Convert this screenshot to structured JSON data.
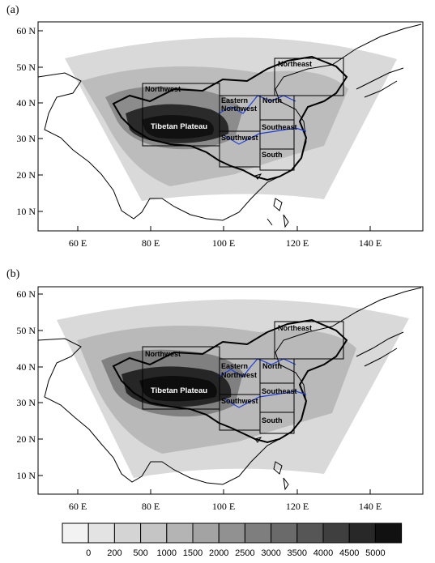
{
  "panels": [
    {
      "label": "(a)",
      "lat_ticks": [
        "60 N",
        "50 N",
        "40 N",
        "30 N",
        "20 N",
        "10 N"
      ],
      "lon_ticks": [
        "60 E",
        "80 E",
        "100 E",
        "120 E",
        "140 E"
      ],
      "regions": [
        "Northwest",
        "Tibetan Plateau",
        "Eastern",
        "Northwest",
        "North",
        "Northeast",
        "Southwest",
        "Southeast",
        "South"
      ]
    },
    {
      "label": "(b)",
      "lat_ticks": [
        "60 N",
        "50 N",
        "40 N",
        "30 N",
        "20 N",
        "10 N"
      ],
      "lon_ticks": [
        "60 E",
        "80 E",
        "100 E",
        "120 E",
        "140 E"
      ],
      "regions": [
        "Northwest",
        "Tibetan Plateau",
        "Eastern",
        "Northwest",
        "North",
        "Northeast",
        "Southwest",
        "Southeast",
        "South"
      ]
    }
  ],
  "colorbar": {
    "labels": [
      "0",
      "200",
      "500",
      "1000",
      "1500",
      "2000",
      "2500",
      "3000",
      "3500",
      "4000",
      "4500",
      "5000"
    ],
    "colors": [
      "#f2f2f2",
      "#e3e3e3",
      "#d4d4d4",
      "#c5c5c5",
      "#b4b4b4",
      "#a3a3a3",
      "#919191",
      "#7e7e7e",
      "#6a6a6a",
      "#565656",
      "#3f3f3f",
      "#282828",
      "#111111"
    ]
  },
  "style": {
    "river_color": "#1f3fd9",
    "domain_light": "#d9d9d9",
    "terrain_dark": "#1a1a1a"
  }
}
